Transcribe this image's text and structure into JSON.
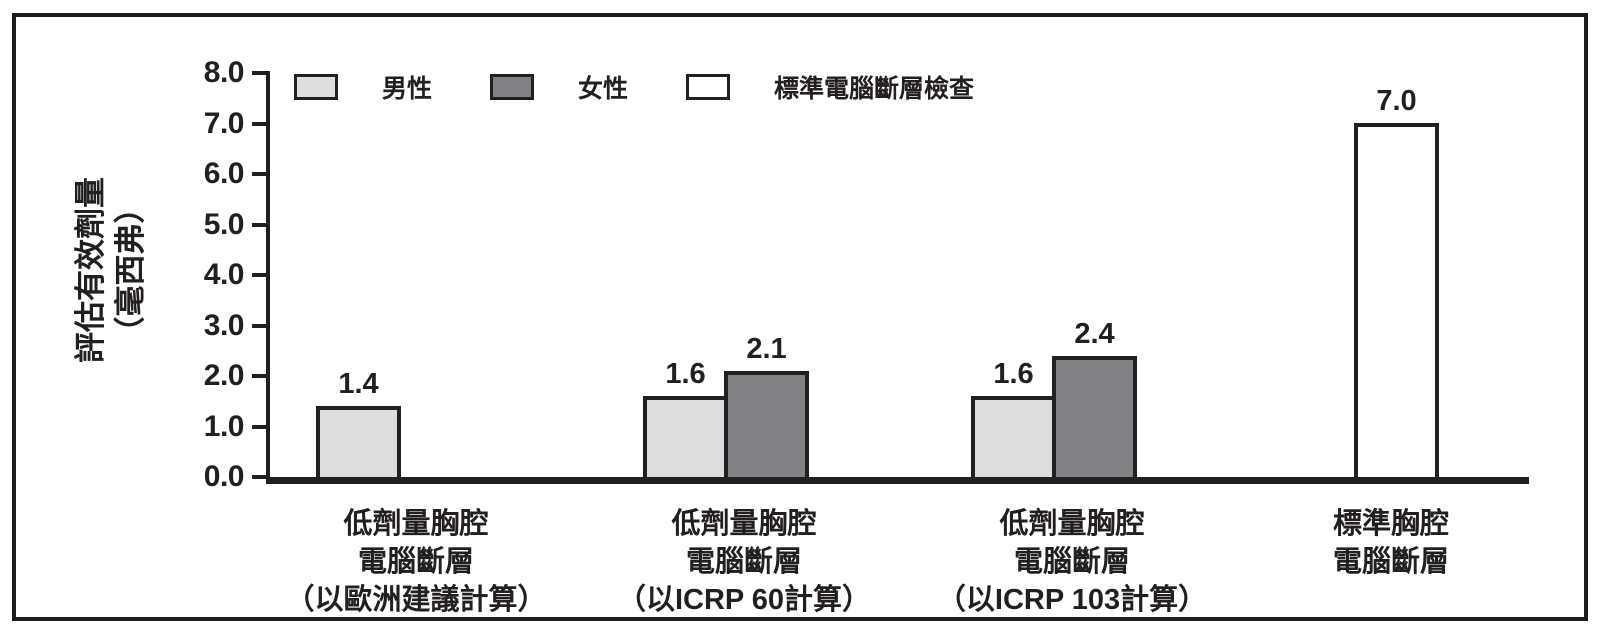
{
  "chart_data": {
    "type": "bar",
    "title": "",
    "ylabel_lines": [
      "評估有效劑量",
      "（毫西弗）"
    ],
    "ylim": [
      0,
      8
    ],
    "ytick_step": 1.0,
    "yticks": [
      "0.0",
      "1.0",
      "2.0",
      "3.0",
      "4.0",
      "5.0",
      "6.0",
      "7.0",
      "8.0"
    ],
    "grid": false,
    "legend_position": "top-left",
    "ink_color": "#231f20",
    "background_color": "#ffffff",
    "categories": [
      {
        "lines": [
          "低劑量胸腔",
          "電腦斷層",
          "（以歐洲建議計算）"
        ]
      },
      {
        "lines": [
          "低劑量胸腔",
          "電腦斷層",
          "（以ICRP 60計算）"
        ]
      },
      {
        "lines": [
          "低劑量胸腔",
          "電腦斷層",
          "（以ICRP 103計算）"
        ]
      },
      {
        "lines": [
          "標準胸腔",
          "電腦斷層"
        ]
      }
    ],
    "series": [
      {
        "name": "男性",
        "color": "#dcddde",
        "values": [
          1.4,
          1.6,
          1.6,
          null
        ]
      },
      {
        "name": "女性",
        "color": "#808285",
        "values": [
          null,
          2.1,
          2.4,
          null
        ]
      },
      {
        "name": "標準電腦斷層檢查",
        "color": "#ffffff",
        "values": [
          null,
          null,
          null,
          7.0
        ]
      }
    ],
    "bar_value_labels": [
      "1.4",
      "1.6",
      "2.1",
      "1.6",
      "2.4",
      "7.0"
    ]
  }
}
